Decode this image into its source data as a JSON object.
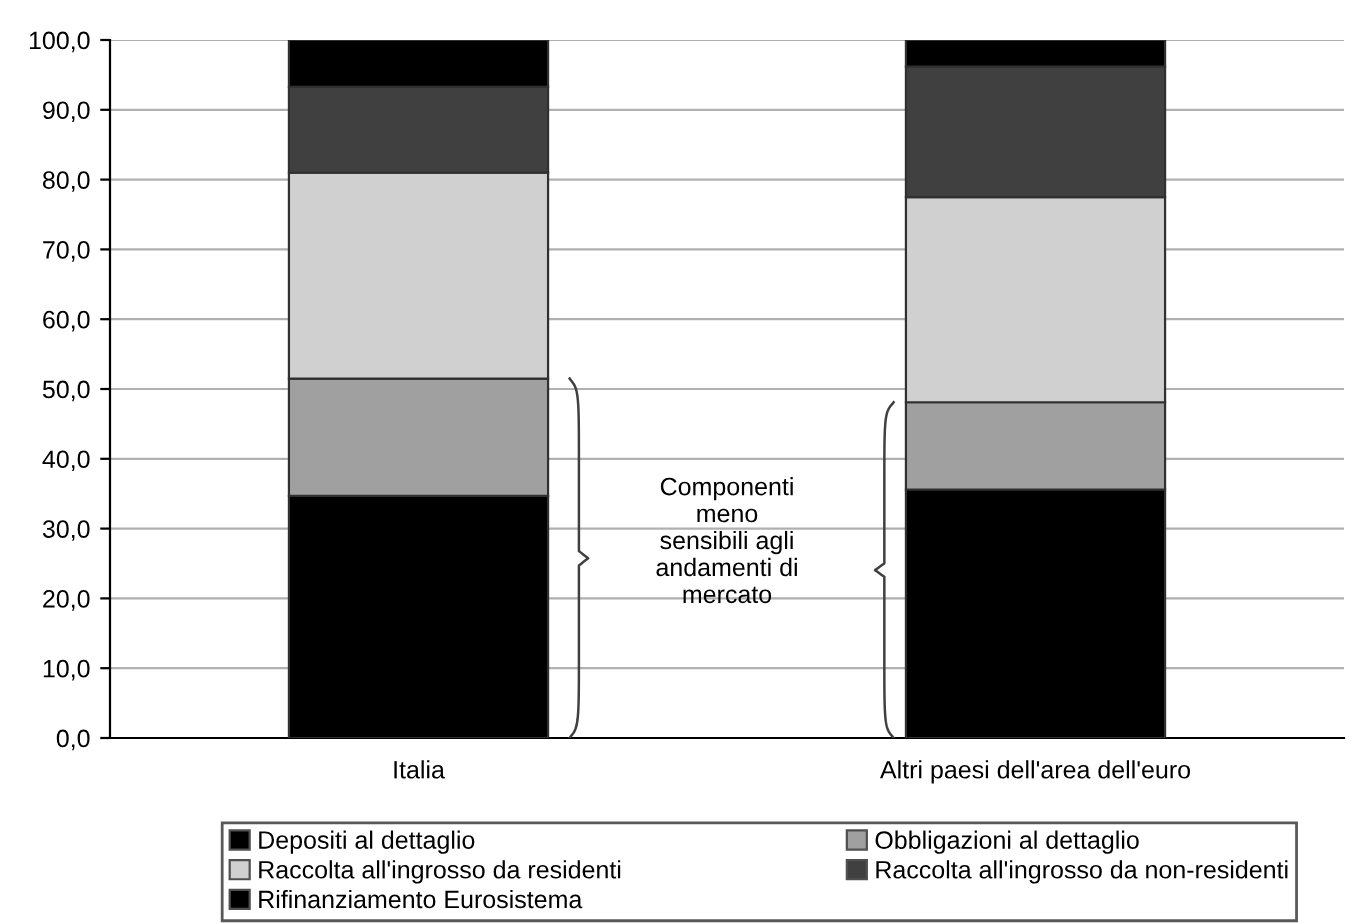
{
  "chart_data": {
    "type": "bar",
    "stacked": true,
    "categories": [
      "Italia",
      "Altri paesi dell'area dell'euro"
    ],
    "series": [
      {
        "name": "Depositi al dettaglio",
        "color": "#000000",
        "values": [
          34.7,
          35.6
        ]
      },
      {
        "name": "Obbligazioni al dettaglio",
        "color": "#a0a0a0",
        "values": [
          16.8,
          12.5
        ]
      },
      {
        "name": "Raccolta all'ingrosso da residenti",
        "color": "#d0d0d0",
        "values": [
          29.5,
          29.4
        ]
      },
      {
        "name": "Raccolta all'ingrosso da non-residenti",
        "color": "#404040",
        "values": [
          12.3,
          18.7
        ]
      },
      {
        "name": "Rifinanziamento Eurosistema",
        "color": "#000000",
        "values": [
          6.7,
          3.8
        ]
      }
    ],
    "ylim": [
      0,
      100
    ],
    "yticks": [
      {
        "value": 0,
        "label": "0,0"
      },
      {
        "value": 10,
        "label": "10,0"
      },
      {
        "value": 20,
        "label": "20,0"
      },
      {
        "value": 30,
        "label": "30,0"
      },
      {
        "value": 40,
        "label": "40,0"
      },
      {
        "value": 50,
        "label": "50,0"
      },
      {
        "value": 60,
        "label": "60,0"
      },
      {
        "value": 70,
        "label": "70,0"
      },
      {
        "value": 80,
        "label": "80,0"
      },
      {
        "value": 90,
        "label": "90,0"
      },
      {
        "value": 100,
        "label": "100,0"
      }
    ],
    "grid": "y",
    "legend": "bottom",
    "annotations": [
      "Componenti\nmeno\nsensibili agli\nandamenti di\nmercato"
    ]
  }
}
